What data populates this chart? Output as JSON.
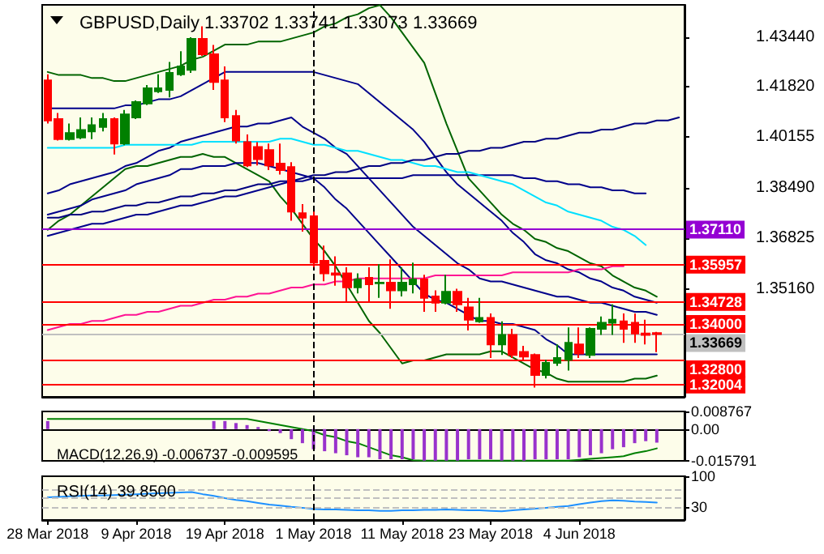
{
  "chart_data": [
    {
      "type": "candlestick",
      "title": "GBPUSD,Daily 1.33702 1.33741 1.33073 1.33669",
      "marker": "none",
      "tick_labels": "y",
      "categories": [
        "28 Mar 2018",
        null,
        null,
        null,
        null,
        null,
        null,
        null,
        "9 Apr 2018",
        null,
        null,
        null,
        null,
        null,
        null,
        null,
        "19 Apr 2018",
        null,
        null,
        null,
        null,
        null,
        null,
        null,
        "1 May 2018",
        null,
        null,
        null,
        null,
        null,
        null,
        null,
        "11 May 2018",
        null,
        null,
        null,
        null,
        null,
        null,
        null,
        "23 May 2018",
        null,
        null,
        null,
        null,
        null,
        null,
        null,
        "4 Jun 2018",
        null,
        null,
        null,
        null,
        null,
        null,
        null,
        null,
        null
      ],
      "ohlc": [
        [
          1.4202,
          1.4222,
          1.406,
          1.407
        ],
        [
          1.4075,
          1.4095,
          1.4004,
          1.4009
        ],
        [
          1.4009,
          1.406,
          1.4004,
          1.4029
        ],
        [
          1.4014,
          1.408,
          1.4009,
          1.4039
        ],
        [
          1.4034,
          1.408,
          1.4009,
          1.4055
        ],
        [
          1.4049,
          1.4095,
          1.4034,
          1.4075
        ],
        [
          1.4075,
          1.408,
          1.3958,
          1.3994
        ],
        [
          1.3994,
          1.4105,
          1.3989,
          1.409
        ],
        [
          1.408,
          1.4136,
          1.4075,
          1.4131
        ],
        [
          1.4126,
          1.4187,
          1.4121,
          1.4176
        ],
        [
          1.4166,
          1.4222,
          1.4161,
          1.4176
        ],
        [
          1.4171,
          1.4263,
          1.4146,
          1.4227
        ],
        [
          1.4222,
          1.4298,
          1.4217,
          1.4248
        ],
        [
          1.4237,
          1.4344,
          1.4227,
          1.4339
        ],
        [
          1.4339,
          1.438,
          1.4283,
          1.4288
        ],
        [
          1.4288,
          1.4319,
          1.4171,
          1.4197
        ],
        [
          1.4202,
          1.4248,
          1.4065,
          1.408
        ],
        [
          1.4085,
          1.4105,
          1.3994,
          1.4004
        ],
        [
          1.3999,
          1.4024,
          1.3917,
          1.3922
        ],
        [
          1.3983,
          1.3999,
          1.3922,
          1.3943
        ],
        [
          1.3973,
          1.3994,
          1.3907,
          1.3922
        ],
        [
          1.3928,
          1.3994,
          1.3892,
          1.3907
        ],
        [
          1.3917,
          1.3933,
          1.374,
          1.377
        ],
        [
          1.3765,
          1.3795,
          1.3704,
          1.375
        ],
        [
          1.3755,
          1.377,
          1.3587,
          1.3602
        ],
        [
          1.3608,
          1.3658,
          1.3541,
          1.3567
        ],
        [
          1.3567,
          1.3623,
          1.3526,
          1.3562
        ],
        [
          1.3567,
          1.3587,
          1.3475,
          1.3521
        ],
        [
          1.3521,
          1.3567,
          1.3501,
          1.3547
        ],
        [
          1.3552,
          1.3587,
          1.3475,
          1.3531
        ],
        [
          1.3534,
          1.3597,
          1.3486,
          1.3536
        ],
        [
          1.3536,
          1.3613,
          1.345,
          1.3511
        ],
        [
          1.3511,
          1.3587,
          1.3491,
          1.3536
        ],
        [
          1.3531,
          1.3602,
          1.3501,
          1.3547
        ],
        [
          1.3547,
          1.3562,
          1.344,
          1.3486
        ],
        [
          1.3491,
          1.3511,
          1.344,
          1.347
        ],
        [
          1.347,
          1.3562,
          1.3465,
          1.3506
        ],
        [
          1.3506,
          1.3516,
          1.344,
          1.3465
        ],
        [
          1.3455,
          1.3486,
          1.3379,
          1.3414
        ],
        [
          1.3409,
          1.3486,
          1.3404,
          1.342
        ],
        [
          1.342,
          1.3435,
          1.3288,
          1.3333
        ],
        [
          1.3333,
          1.3409,
          1.3298,
          1.3364
        ],
        [
          1.3364,
          1.3384,
          1.3288,
          1.3298
        ],
        [
          1.3308,
          1.3328,
          1.3282,
          1.3293
        ],
        [
          1.3298,
          1.3303,
          1.3191,
          1.3232
        ],
        [
          1.3232,
          1.3282,
          1.3221,
          1.3272
        ],
        [
          1.3272,
          1.3333,
          1.3262,
          1.3288
        ],
        [
          1.3282,
          1.3389,
          1.3247,
          1.3338
        ],
        [
          1.3333,
          1.3389,
          1.3288,
          1.3303
        ],
        [
          1.3298,
          1.3389,
          1.3288,
          1.3384
        ],
        [
          1.3384,
          1.3425,
          1.3364,
          1.3404
        ],
        [
          1.3404,
          1.3465,
          1.3364,
          1.3414
        ],
        [
          1.3409,
          1.3435,
          1.3338,
          1.3384
        ],
        [
          1.3404,
          1.3435,
          1.3338,
          1.3369
        ],
        [
          1.3369,
          1.3414,
          1.3333,
          1.3364
        ],
        [
          1.33702,
          1.33741,
          1.33073,
          1.33669
        ],
        null,
        null
      ],
      "colors": [
        "#ff0000",
        "#ff0000",
        "#008000",
        "#008000",
        "#008000",
        "#008000",
        "#ff0000",
        "#008000",
        "#008000",
        "#008000",
        "#008000",
        "#008000",
        "#008000",
        "#008000",
        "#ff0000",
        "#ff0000",
        "#ff0000",
        "#ff0000",
        "#ff0000",
        "#ff0000",
        "#ff0000",
        "#ff0000",
        "#ff0000",
        "#ff0000",
        "#ff0000",
        "#ff0000",
        "#ff0000",
        "#ff0000",
        "#008000",
        "#ff0000",
        "#008000",
        "#ff0000",
        "#008000",
        "#008000",
        "#ff0000",
        "#ff0000",
        "#008000",
        "#ff0000",
        "#ff0000",
        "#008000",
        "#ff0000",
        "#008000",
        "#ff0000",
        "#ff0000",
        "#ff0000",
        "#008000",
        "#008000",
        "#008000",
        "#ff0000",
        "#008000",
        "#008000",
        "#008000",
        "#ff0000",
        "#ff0000",
        "#ff0000",
        "#ff0000",
        null,
        null
      ],
      "series": [
        {
          "type": "line",
          "color": "#006400",
          "values": [
            1.423,
            1.422,
            1.422,
            1.422,
            1.421,
            1.421,
            1.42,
            1.42,
            1.421,
            1.422,
            1.423,
            1.424,
            1.425,
            1.427,
            1.428,
            1.43,
            1.432,
            1.432,
            1.432,
            1.433,
            1.433,
            1.433,
            1.434,
            1.435,
            1.436,
            1.438,
            1.439,
            1.441,
            1.442,
            1.444,
            1.445,
            1.441,
            1.436,
            1.431,
            1.426,
            1.416,
            1.406,
            1.397,
            1.388,
            1.384,
            1.38,
            1.376,
            1.373,
            1.371,
            1.368,
            1.367,
            1.365,
            1.364,
            1.362,
            1.36,
            1.359,
            1.356,
            1.354,
            1.352,
            1.351,
            1.349,
            null,
            null
          ]
        },
        {
          "type": "line",
          "color": "#006400",
          "values": [
            1.371,
            1.374,
            1.376,
            1.379,
            1.382,
            1.385,
            1.388,
            1.391,
            1.392,
            1.392,
            1.393,
            1.394,
            1.395,
            1.395,
            1.396,
            1.395,
            1.395,
            1.393,
            1.391,
            1.389,
            1.387,
            1.382,
            1.378,
            1.373,
            1.368,
            1.364,
            1.359,
            1.353,
            1.347,
            1.341,
            1.337,
            1.332,
            1.327,
            1.328,
            1.328,
            1.329,
            1.33,
            1.33,
            1.33,
            1.33,
            1.331,
            1.331,
            1.329,
            1.327,
            1.325,
            1.324,
            1.322,
            1.321,
            1.321,
            1.321,
            1.321,
            1.321,
            1.321,
            1.322,
            1.322,
            1.323,
            null,
            null
          ]
        },
        {
          "type": "line",
          "color": "#00008b",
          "values": [
            1.411,
            1.411,
            1.411,
            1.411,
            1.411,
            1.411,
            1.411,
            1.412,
            1.412,
            1.413,
            1.414,
            1.414,
            1.415,
            1.417,
            1.419,
            1.421,
            1.423,
            1.423,
            1.423,
            1.423,
            1.423,
            1.423,
            1.423,
            1.423,
            1.423,
            1.422,
            1.421,
            1.42,
            1.419,
            1.416,
            1.413,
            1.41,
            1.407,
            1.404,
            1.4,
            1.395,
            1.39,
            1.386,
            1.383,
            1.38,
            1.377,
            1.374,
            1.37,
            1.367,
            1.363,
            1.361,
            1.36,
            1.358,
            1.357,
            1.355,
            1.354,
            1.352,
            1.351,
            1.349,
            1.348,
            1.347,
            null,
            null
          ]
        },
        {
          "type": "line",
          "color": "#00008b",
          "values": [
            1.383,
            1.384,
            1.386,
            1.387,
            1.388,
            1.389,
            1.39,
            1.392,
            1.393,
            1.395,
            1.397,
            1.398,
            1.4,
            1.401,
            1.402,
            1.403,
            1.404,
            1.405,
            1.405,
            1.406,
            1.406,
            1.407,
            1.408,
            1.405,
            1.403,
            1.401,
            1.398,
            1.396,
            1.392,
            1.388,
            1.384,
            1.38,
            1.376,
            1.372,
            1.369,
            1.366,
            1.363,
            1.36,
            1.358,
            1.355,
            1.354,
            1.354,
            1.353,
            1.352,
            1.351,
            1.35,
            1.349,
            1.349,
            1.348,
            1.347,
            1.347,
            1.346,
            1.345,
            1.344,
            1.344,
            1.343,
            null,
            null
          ]
        },
        {
          "type": "line",
          "color": "#00008b",
          "values": [
            1.376,
            1.377,
            1.378,
            1.379,
            1.381,
            1.382,
            1.383,
            1.384,
            1.386,
            1.387,
            1.388,
            1.389,
            1.391,
            1.391,
            1.392,
            1.392,
            1.392,
            1.393,
            1.393,
            1.393,
            1.392,
            1.391,
            1.39,
            1.389,
            1.388,
            1.385,
            1.381,
            1.378,
            1.374,
            1.37,
            1.366,
            1.362,
            1.358,
            1.354,
            1.35,
            1.348,
            1.347,
            1.345,
            1.343,
            1.341,
            1.341,
            1.34,
            1.34,
            1.339,
            1.338,
            1.335,
            1.333,
            1.33,
            1.33,
            1.33,
            1.33,
            1.33,
            1.33,
            1.33,
            1.33,
            1.33,
            null,
            null
          ]
        },
        {
          "type": "line",
          "color": "#00008b",
          "values": [
            1.369,
            1.37,
            1.371,
            1.372,
            1.373,
            1.373,
            1.374,
            1.375,
            1.376,
            1.376,
            1.377,
            1.378,
            1.379,
            1.379,
            1.38,
            1.381,
            1.382,
            1.382,
            1.383,
            1.384,
            1.385,
            1.386,
            1.387,
            1.387,
            1.388,
            1.388,
            1.388,
            1.388,
            1.388,
            1.388,
            1.388,
            1.388,
            1.388,
            1.389,
            1.389,
            1.389,
            1.389,
            1.389,
            1.389,
            1.389,
            1.389,
            1.389,
            1.389,
            1.388,
            1.388,
            1.387,
            1.387,
            1.386,
            1.386,
            1.385,
            1.385,
            1.384,
            1.384,
            1.383,
            1.383,
            null,
            null,
            null
          ]
        },
        {
          "type": "line",
          "color": "#00e0ff",
          "values": [
            1.398,
            1.398,
            1.398,
            1.398,
            1.398,
            1.398,
            1.398,
            1.399,
            1.399,
            1.399,
            1.399,
            1.399,
            1.399,
            1.399,
            1.4,
            1.4,
            1.4,
            1.4,
            1.4,
            1.4,
            1.4,
            1.401,
            1.401,
            1.4,
            1.399,
            1.399,
            1.398,
            1.397,
            1.397,
            1.396,
            1.395,
            1.394,
            1.394,
            1.393,
            1.392,
            1.392,
            1.391,
            1.39,
            1.39,
            1.389,
            1.388,
            1.387,
            1.386,
            1.384,
            1.382,
            1.38,
            1.379,
            1.377,
            1.376,
            1.375,
            1.374,
            1.372,
            1.371,
            1.369,
            1.366,
            null,
            null,
            null
          ]
        },
        {
          "type": "line",
          "color": "#ff1493",
          "values": [
            1.338,
            1.339,
            1.34,
            1.34,
            1.341,
            1.341,
            1.342,
            1.343,
            1.343,
            1.344,
            1.344,
            1.345,
            1.346,
            1.346,
            1.347,
            1.348,
            1.348,
            1.349,
            1.349,
            1.35,
            1.35,
            1.351,
            1.352,
            1.352,
            1.353,
            1.353,
            1.354,
            1.354,
            1.355,
            1.355,
            1.355,
            1.355,
            1.355,
            1.355,
            1.355,
            1.356,
            1.356,
            1.356,
            1.356,
            1.356,
            1.356,
            1.356,
            1.357,
            1.357,
            1.357,
            1.357,
            1.357,
            1.357,
            1.358,
            1.358,
            1.358,
            1.359,
            1.359,
            null,
            null,
            null,
            null,
            null
          ]
        },
        {
          "type": "line",
          "color": "#000080",
          "values": [
            1.375,
            1.375,
            1.376,
            1.376,
            1.377,
            1.377,
            1.378,
            1.379,
            1.379,
            1.38,
            1.38,
            1.381,
            1.382,
            1.382,
            1.383,
            1.383,
            1.384,
            1.384,
            1.385,
            1.386,
            1.386,
            1.387,
            1.387,
            1.388,
            1.389,
            1.389,
            1.39,
            1.39,
            1.391,
            1.392,
            1.392,
            1.393,
            1.393,
            1.394,
            1.394,
            1.395,
            1.396,
            1.396,
            1.397,
            1.397,
            1.398,
            1.398,
            1.399,
            1.4,
            1.4,
            1.401,
            1.401,
            1.402,
            1.403,
            1.403,
            1.404,
            1.404,
            1.405,
            1.406,
            1.406,
            1.407,
            1.407,
            1.408
          ]
        }
      ],
      "ylim": [
        1.316,
        1.4451
      ],
      "yticks": [
        {
          "value": 1.4344,
          "label": "1.43440"
        },
        {
          "value": 1.4182,
          "label": "1.41820"
        },
        {
          "value": 1.40155,
          "label": "1.40155"
        },
        {
          "value": 1.3849,
          "label": "1.38490"
        },
        {
          "value": 1.36825,
          "label": "1.36825"
        },
        {
          "value": 1.3516,
          "label": "1.35160"
        }
      ],
      "ref_lines": [
        {
          "axis": "y",
          "value": 1.3711,
          "label": "1.37110",
          "color": "#9400d3"
        },
        {
          "axis": "y",
          "value": 1.35957,
          "label": "1.35957",
          "color": "#ff0000"
        },
        {
          "axis": "y",
          "value": 1.34728,
          "label": "1.34728",
          "color": "#ff0000"
        },
        {
          "axis": "y",
          "value": 1.34,
          "label": "1.34000",
          "color": "#ff0000"
        },
        {
          "axis": "y",
          "value": 1.33669,
          "label": "1.33669",
          "color": "#c0c0c0"
        },
        {
          "axis": "y",
          "value": 1.328,
          "label": "1.32800",
          "color": "#ff0000"
        },
        {
          "axis": "y",
          "value": 1.32004,
          "label": "1.32004",
          "color": "#ff0000"
        },
        {
          "axis": "x",
          "value": "1 May 2018",
          "color": "#000000",
          "line_style": "dashed"
        }
      ]
    },
    {
      "type": "bar",
      "title": "MACD(12,26,9) -0.006737 -0.009595",
      "marker": "none",
      "tick_labels": "y",
      "categories": [
        "28 Mar 2018",
        null,
        null,
        null,
        null,
        null,
        null,
        null,
        "9 Apr 2018",
        null,
        null,
        null,
        null,
        null,
        null,
        null,
        "19 Apr 2018",
        null,
        null,
        null,
        null,
        null,
        null,
        null,
        "1 May 2018",
        null,
        null,
        null,
        null,
        null,
        null,
        null,
        "11 May 2018",
        null,
        null,
        null,
        null,
        null,
        null,
        null,
        "23 May 2018",
        null,
        null,
        null,
        null,
        null,
        null,
        null,
        "4 Jun 2018",
        null,
        null,
        null,
        null,
        null,
        null,
        null,
        null,
        null
      ],
      "series": [
        {
          "color": "#9932cc",
          "values": [
            0.004,
            null,
            null,
            null,
            null,
            null,
            null,
            null,
            null,
            null,
            null,
            null,
            null,
            null,
            null,
            0.004,
            0.004,
            0.003,
            0.002,
            0.001,
            -0.001,
            -0.002,
            -0.005,
            -0.007,
            -0.01,
            -0.011,
            -0.012,
            -0.013,
            -0.014,
            -0.014,
            -0.015,
            -0.015,
            -0.015,
            -0.015,
            -0.0157,
            -0.0157,
            -0.0157,
            -0.0157,
            -0.015,
            -0.015,
            -0.015,
            -0.0157,
            -0.0157,
            -0.0157,
            -0.015,
            -0.015,
            -0.015,
            -0.015,
            -0.014,
            -0.013,
            -0.012,
            -0.01,
            -0.009,
            -0.007,
            -0.006,
            -0.006737,
            null,
            null
          ]
        },
        {
          "type": "line",
          "color": "#008000",
          "values": [
            0.005,
            0.005,
            0.005,
            0.005,
            0.005,
            0.005,
            0.005,
            0.005,
            0.005,
            0.005,
            0.005,
            0.005,
            0.005,
            0.005,
            0.005,
            0.005,
            0.005,
            0.005,
            0.005,
            0.004,
            0.003,
            0.002,
            0.001,
            0.0,
            -0.001,
            -0.003,
            -0.004,
            -0.006,
            -0.007,
            -0.009,
            -0.011,
            -0.013,
            -0.014,
            -0.0155,
            -0.0157,
            -0.0157,
            -0.0157,
            -0.0157,
            -0.0157,
            -0.0157,
            -0.0157,
            -0.0157,
            -0.0157,
            -0.0157,
            -0.0157,
            -0.0157,
            -0.0157,
            -0.0157,
            -0.0153,
            -0.0148,
            -0.0144,
            -0.014,
            -0.0135,
            -0.012,
            -0.011,
            -0.009595,
            null,
            null
          ]
        }
      ],
      "ylim": [
        -0.015791,
        0.008767
      ],
      "yticks": [
        0.008767,
        {
          "value": 0,
          "label": "0.00"
        },
        -0.015791
      ],
      "ref_lines": [
        {
          "axis": "x",
          "value": "1 May 2018",
          "color": "#000000",
          "line_style": "dashed"
        }
      ]
    },
    {
      "type": "line",
      "title": "RSI(14) 39.8500",
      "marker": "none",
      "categories": [
        "28 Mar 2018",
        null,
        null,
        null,
        null,
        null,
        null,
        null,
        "9 Apr 2018",
        null,
        null,
        null,
        null,
        null,
        null,
        null,
        "19 Apr 2018",
        null,
        null,
        null,
        null,
        null,
        null,
        null,
        "1 May 2018",
        null,
        null,
        null,
        null,
        null,
        null,
        null,
        "11 May 2018",
        null,
        null,
        null,
        null,
        null,
        null,
        null,
        "23 May 2018",
        null,
        null,
        null,
        null,
        null,
        null,
        null,
        "4 Jun 2018",
        null,
        null,
        null,
        null,
        null,
        null,
        null,
        null,
        null
      ],
      "series": [
        {
          "color": "#1e90ff",
          "values": [
            52,
            53,
            54,
            55,
            56,
            56,
            57,
            58,
            59,
            60,
            61,
            62,
            63,
            64,
            59,
            55,
            50,
            46,
            43,
            39,
            35,
            33,
            30,
            28,
            25,
            24,
            24,
            23,
            22,
            22,
            21,
            21,
            22,
            22,
            23,
            23,
            24,
            23,
            22,
            22,
            21,
            20,
            22,
            24,
            26,
            28,
            30,
            32,
            36,
            40,
            43,
            45,
            44,
            42,
            41,
            39.85,
            null,
            null
          ]
        }
      ],
      "ylim": [
        0,
        100
      ],
      "yticks": [
        30,
        100
      ],
      "ref_lines": [
        {
          "axis": "y",
          "value": 70,
          "color": "#c0c0c0",
          "line_style": "dashed"
        },
        {
          "axis": "y",
          "value": 50,
          "color": "#c0c0c0",
          "line_style": "dashed"
        },
        {
          "axis": "y",
          "value": 30,
          "color": "#c0c0c0",
          "line_style": "dashed"
        },
        {
          "axis": "x",
          "value": "1 May 2018",
          "color": "#000000",
          "line_style": "dashed"
        }
      ]
    }
  ]
}
